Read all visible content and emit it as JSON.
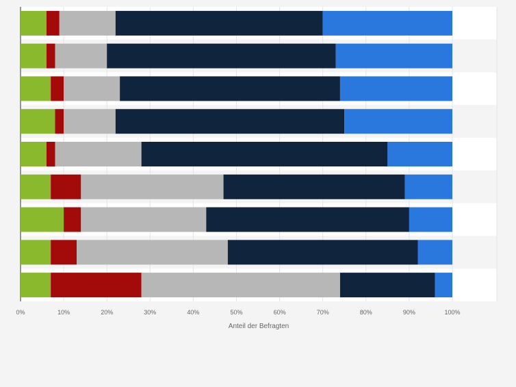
{
  "chart_data": {
    "type": "bar",
    "orientation": "horizontal",
    "stacked": true,
    "xlabel": "Anteil der Befragten",
    "xlim": [
      0,
      100
    ],
    "xticks": [
      "0%",
      "10%",
      "20%",
      "30%",
      "40%",
      "50%",
      "60%",
      "70%",
      "80%",
      "90%",
      "100%"
    ],
    "grid": true,
    "categories": [
      "",
      "",
      "",
      "",
      "",
      "",
      "",
      "",
      ""
    ],
    "series": [
      {
        "color": "#8ab92d",
        "values": [
          6,
          6,
          7,
          8,
          6,
          7,
          10,
          7,
          7
        ]
      },
      {
        "color": "#a30b0b",
        "values": [
          3,
          2,
          3,
          2,
          2,
          7,
          4,
          6,
          21
        ]
      },
      {
        "color": "#b7b7b7",
        "values": [
          13,
          12,
          13,
          12,
          20,
          33,
          29,
          35,
          46
        ]
      },
      {
        "color": "#11243d",
        "values": [
          48,
          53,
          51,
          53,
          57,
          42,
          47,
          44,
          22
        ]
      },
      {
        "color": "#2a78de",
        "values": [
          30,
          27,
          26,
          25,
          15,
          11,
          10,
          8,
          4
        ]
      }
    ]
  }
}
